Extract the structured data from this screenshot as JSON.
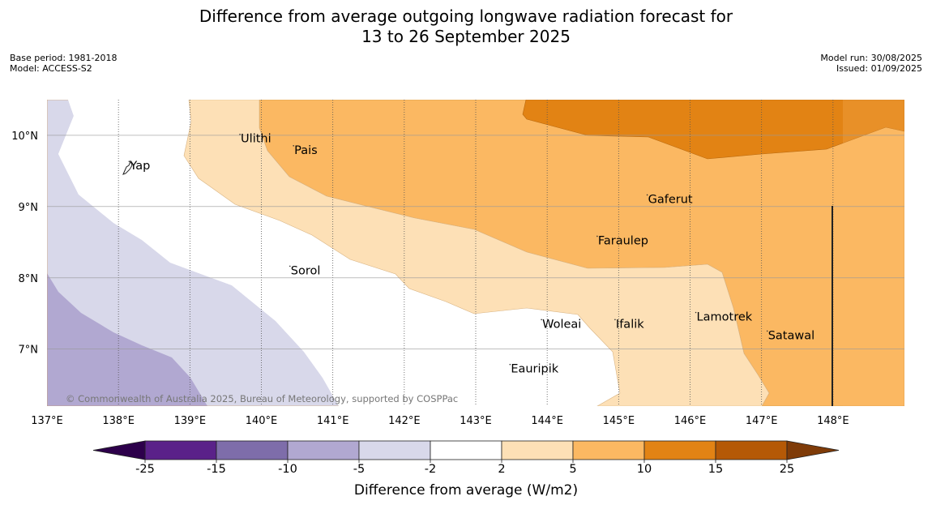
{
  "title": {
    "line1": "Difference from average outgoing longwave radiation forecast for",
    "line2": "13 to 26 September 2025"
  },
  "meta": {
    "base_period": "Base period: 1981-2018",
    "model": "Model: ACCESS-S2",
    "model_run": "Model run: 30/08/2025",
    "issued": "Issued: 01/09/2025"
  },
  "map": {
    "lon_range": [
      137,
      149
    ],
    "lat_range": [
      6.2,
      10.5
    ],
    "lon_ticks": [
      {
        "value": 137,
        "label": "137°E"
      },
      {
        "value": 138,
        "label": "138°E"
      },
      {
        "value": 139,
        "label": "139°E"
      },
      {
        "value": 140,
        "label": "140°E"
      },
      {
        "value": 141,
        "label": "141°E"
      },
      {
        "value": 142,
        "label": "142°E"
      },
      {
        "value": 143,
        "label": "143°E"
      },
      {
        "value": 144,
        "label": "144°E"
      },
      {
        "value": 145,
        "label": "145°E"
      },
      {
        "value": 146,
        "label": "146°E"
      },
      {
        "value": 147,
        "label": "147°E"
      },
      {
        "value": 148,
        "label": "148°E"
      }
    ],
    "lat_ticks": [
      {
        "value": 10,
        "label": "10°N"
      },
      {
        "value": 9,
        "label": "9°N"
      },
      {
        "value": 8,
        "label": "8°N"
      },
      {
        "value": 7,
        "label": "7°N"
      }
    ],
    "places": [
      {
        "name": "Yap",
        "lon": 138.15,
        "lat": 9.52
      },
      {
        "name": "Ulithi",
        "lon": 139.7,
        "lat": 9.9
      },
      {
        "name": "Pais",
        "lon": 140.45,
        "lat": 9.74
      },
      {
        "name": "Gaferut",
        "lon": 145.4,
        "lat": 9.05
      },
      {
        "name": "Faraulep",
        "lon": 144.7,
        "lat": 8.47
      },
      {
        "name": "Sorol",
        "lon": 140.4,
        "lat": 8.05
      },
      {
        "name": "Lamotrek",
        "lon": 146.08,
        "lat": 7.4
      },
      {
        "name": "Woleai",
        "lon": 143.92,
        "lat": 7.3
      },
      {
        "name": "Ifalik",
        "lon": 144.95,
        "lat": 7.3
      },
      {
        "name": "Satawal",
        "lon": 147.08,
        "lat": 7.14
      },
      {
        "name": "Eauripik",
        "lon": 143.48,
        "lat": 6.67
      }
    ],
    "copyright": "© Commonwealth of Australia 2025, Bureau of Meteorology, supported by COSPPac",
    "colors": {
      "below_m10": "#b1a8d1",
      "m10_to_m5": "#d8d8ea",
      "m2_to_2": "#ffffff",
      "2_to_5": "#fde0b6",
      "5_to_10": "#fbb862",
      "10_to_15": "#e28314"
    }
  },
  "colorbar": {
    "label": "Difference from average (W/m2)",
    "ticks": [
      "-25",
      "-15",
      "-10",
      "-5",
      "-2",
      "2",
      "5",
      "10",
      "15",
      "25"
    ],
    "colors": [
      "#5a2189",
      "#7e6daa",
      "#b1a8d1",
      "#d8d8ea",
      "#ffffff",
      "#fde0b6",
      "#fbb862",
      "#e28314",
      "#b55906"
    ],
    "extend_low_color": "#2d004b",
    "extend_high_color": "#7f3b08"
  }
}
